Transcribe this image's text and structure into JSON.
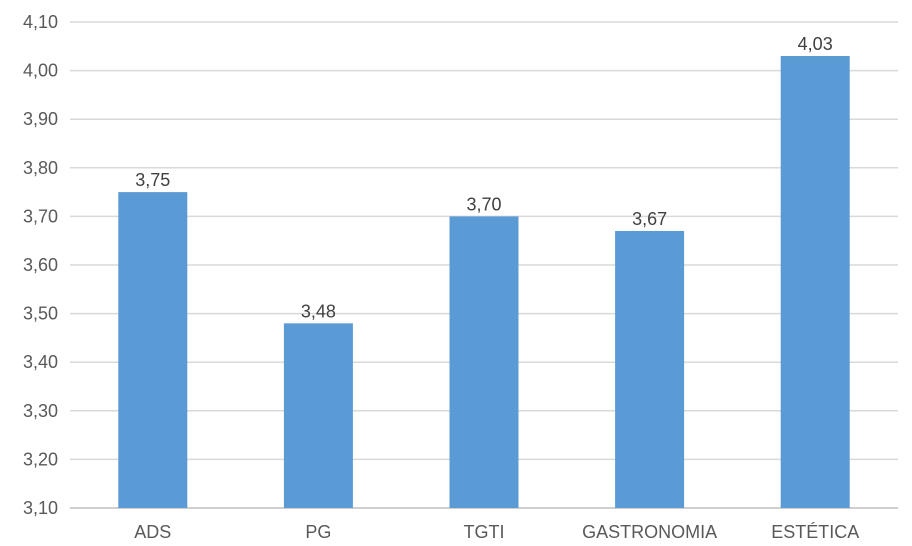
{
  "chart_data": {
    "type": "bar",
    "title": "",
    "xlabel": "",
    "ylabel": "",
    "categories": [
      "ADS",
      "PG",
      "TGTI",
      "GASTRONOMIA",
      "ESTÉTICA"
    ],
    "values": [
      3.75,
      3.48,
      3.7,
      3.67,
      4.03
    ],
    "data_labels": [
      "3,75",
      "3,48",
      "3,70",
      "3,67",
      "4,03"
    ],
    "ylim": [
      3.1,
      4.1
    ],
    "yticks": [
      3.1,
      3.2,
      3.3,
      3.4,
      3.5,
      3.6,
      3.7,
      3.8,
      3.9,
      4.0,
      4.1
    ],
    "ytick_labels": [
      "3,10",
      "3,20",
      "3,30",
      "3,40",
      "3,50",
      "3,60",
      "3,70",
      "3,80",
      "3,90",
      "4,00",
      "4,10"
    ],
    "grid": true,
    "legend": "none",
    "colors": {
      "bar": "#5b9bd5",
      "grid": "#d9d9d9"
    }
  }
}
